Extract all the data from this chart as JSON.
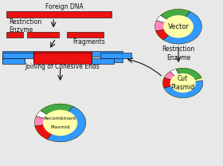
{
  "bg_color": "#e8e8e8",
  "red": "#ee1111",
  "blue": "#3399ff",
  "green": "#44aa44",
  "yellow": "#ffffaa",
  "pink": "#ff88bb",
  "white": "#ffffff",
  "dark": "#111111",
  "label_fontsize": 5.5,
  "foreign_dna_label": "Foreign DNA",
  "restriction_enzyme_label": "Restriction\nEnzyme",
  "fragments_label": "Fragments",
  "joining_label": "Joining of Cohesive Ends",
  "vector_label": "Vector",
  "restriction_enzyme2_label": "Restriction\nEnzyme",
  "cut_plasmid_label": "Cut\nPlasmid",
  "recombinant_label": "Recombinant\nPlasmid"
}
